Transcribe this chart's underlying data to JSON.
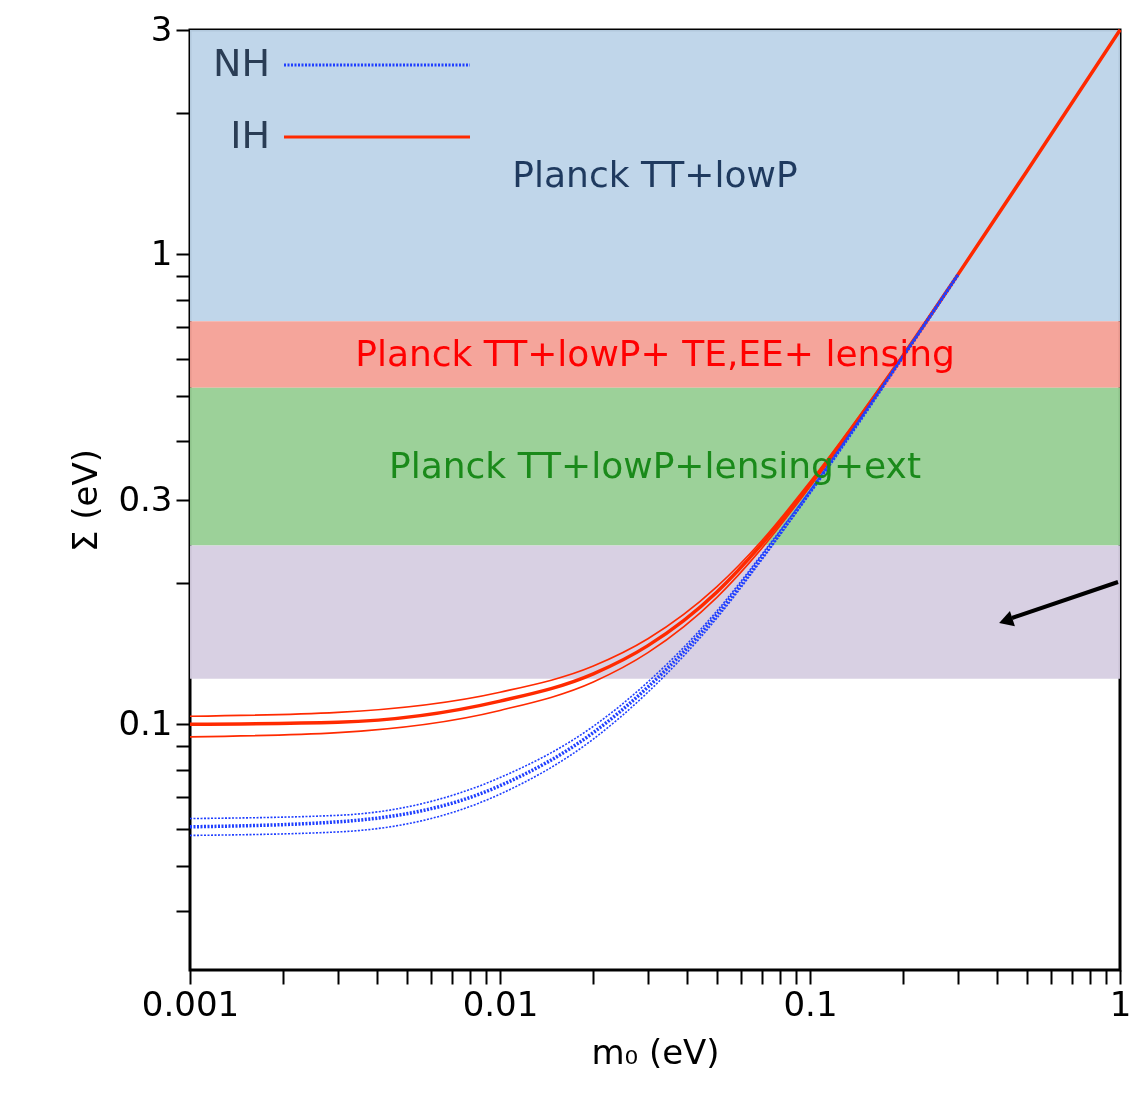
{
  "chart_data": {
    "type": "line",
    "xlabel": "m₀ (eV)",
    "ylabel": "Σ (eV)",
    "log": "xy",
    "xlim": [
      0.001,
      1
    ],
    "ylim": [
      0.03,
      3
    ],
    "xticks": [
      0.001,
      {
        "value": 0.002,
        "label": null
      },
      {
        "value": 0.003,
        "label": null
      },
      {
        "value": 0.004,
        "label": null
      },
      {
        "value": 0.005,
        "label": null
      },
      {
        "value": 0.006,
        "label": null
      },
      {
        "value": 0.007,
        "label": null
      },
      {
        "value": 0.008,
        "label": null
      },
      {
        "value": 0.009,
        "label": null
      },
      0.01,
      {
        "value": 0.02,
        "label": null
      },
      {
        "value": 0.03,
        "label": null
      },
      {
        "value": 0.04,
        "label": null
      },
      {
        "value": 0.05,
        "label": null
      },
      {
        "value": 0.06,
        "label": null
      },
      {
        "value": 0.07,
        "label": null
      },
      {
        "value": 0.08,
        "label": null
      },
      {
        "value": 0.09,
        "label": null
      },
      0.1,
      {
        "value": 0.2,
        "label": null
      },
      {
        "value": 0.3,
        "label": null
      },
      {
        "value": 0.4,
        "label": null
      },
      {
        "value": 0.5,
        "label": null
      },
      {
        "value": 0.6,
        "label": null
      },
      {
        "value": 0.7,
        "label": null
      },
      {
        "value": 0.8,
        "label": null
      },
      {
        "value": 0.9,
        "label": null
      },
      1
    ],
    "yticks": [
      {
        "value": 0.04,
        "label": null
      },
      {
        "value": 0.05,
        "label": null
      },
      {
        "value": 0.06,
        "label": null
      },
      {
        "value": 0.07,
        "label": null
      },
      {
        "value": 0.08,
        "label": null
      },
      {
        "value": 0.09,
        "label": null
      },
      0.1,
      {
        "value": 0.2,
        "label": null
      },
      0.3,
      {
        "value": 0.4,
        "label": null
      },
      {
        "value": 0.5,
        "label": null
      },
      {
        "value": 0.6,
        "label": null
      },
      {
        "value": 0.7,
        "label": null
      },
      {
        "value": 0.8,
        "label": null
      },
      {
        "value": 0.9,
        "label": null
      },
      1,
      {
        "value": 2,
        "label": null
      },
      3
    ],
    "grid": false,
    "legend": "top left",
    "marker": "none",
    "x": [
      0.001,
      0.003,
      0.01,
      0.02,
      0.03,
      0.05,
      0.07,
      0.1,
      0.2,
      0.3,
      0.5,
      1
    ],
    "series": [
      {
        "color": "#1f3fff",
        "line_style": "dotted",
        "values": [
          0.063,
          0.064,
          0.077,
          0.099,
          0.123,
          0.174,
          0.23,
          0.314,
          0.61,
          0.905,
          null,
          null
        ]
      },
      {
        "name": "NH",
        "color": "#1f3fff",
        "line_style": "dotted",
        "values": [
          0.0605,
          0.062,
          0.074,
          0.096,
          0.12,
          0.171,
          0.227,
          0.312,
          0.607,
          0.904,
          null,
          null
        ]
      },
      {
        "color": "#1f3fff",
        "line_style": "dotted",
        "values": [
          0.058,
          0.059,
          0.071,
          0.093,
          0.117,
          0.168,
          0.224,
          0.31,
          0.605,
          0.903,
          null,
          null
        ]
      },
      {
        "color": "#ff2a00",
        "line_style": "solid",
        "values": [
          0.104,
          0.106,
          0.117,
          0.133,
          0.152,
          0.196,
          0.246,
          0.328,
          0.613,
          0.907,
          1.5,
          3.0
        ]
      },
      {
        "name": "IH",
        "color": "#ff2a00",
        "line_style": "solid",
        "values": [
          0.1,
          0.101,
          0.112,
          0.128,
          0.147,
          0.191,
          0.242,
          0.324,
          0.61,
          0.905,
          1.5,
          3.0
        ]
      },
      {
        "color": "#ff2a00",
        "line_style": "solid",
        "values": [
          0.094,
          0.096,
          0.107,
          0.123,
          0.142,
          0.186,
          0.237,
          0.32,
          0.606,
          0.903,
          1.5,
          3.0
        ]
      }
    ],
    "bands": [
      {
        "axis": "y",
        "from": 0.72,
        "to": 3,
        "label": "Planck TT+lowP",
        "color": "#bdd4e9"
      },
      {
        "axis": "y",
        "from": 0.52,
        "to": 0.72,
        "label": "Planck TT+lowP+ TE,EE+ lensing",
        "color": "#f4a096"
      },
      {
        "axis": "y",
        "from": 0.24,
        "to": 0.52,
        "label": "Planck TT+lowP+lensing+ext",
        "color": "#97cf93"
      },
      {
        "axis": "y",
        "from": 0.125,
        "to": 0.24,
        "color": "#d6cde2"
      }
    ]
  }
}
